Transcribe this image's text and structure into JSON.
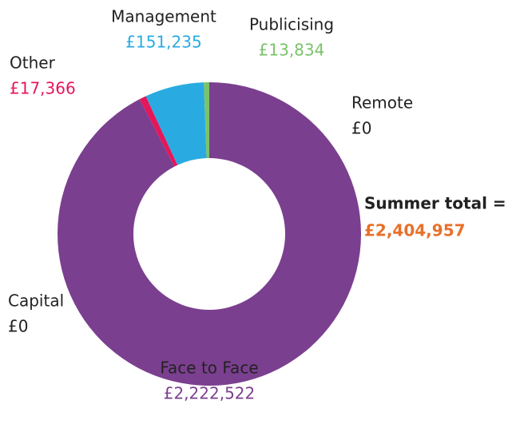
{
  "chart_data": {
    "type": "donut",
    "categories": [
      "Remote",
      "Face to Face",
      "Capital",
      "Other",
      "Management",
      "Publicising"
    ],
    "values": [
      0,
      2222522,
      0,
      17366,
      151235,
      13834
    ],
    "value_labels": [
      "£0",
      "£2,222,522",
      "£0",
      "£17,366",
      "£151,235",
      "£13,834"
    ],
    "colors": [
      "#7b3f8f",
      "#7b3f8f",
      "#7b3f8f",
      "#e5175a",
      "#29abe2",
      "#7ac36a"
    ],
    "total_label": "Summer total =",
    "total": 2404957,
    "total_value_label": "£2,404,957",
    "total_color": "#e8702a"
  }
}
